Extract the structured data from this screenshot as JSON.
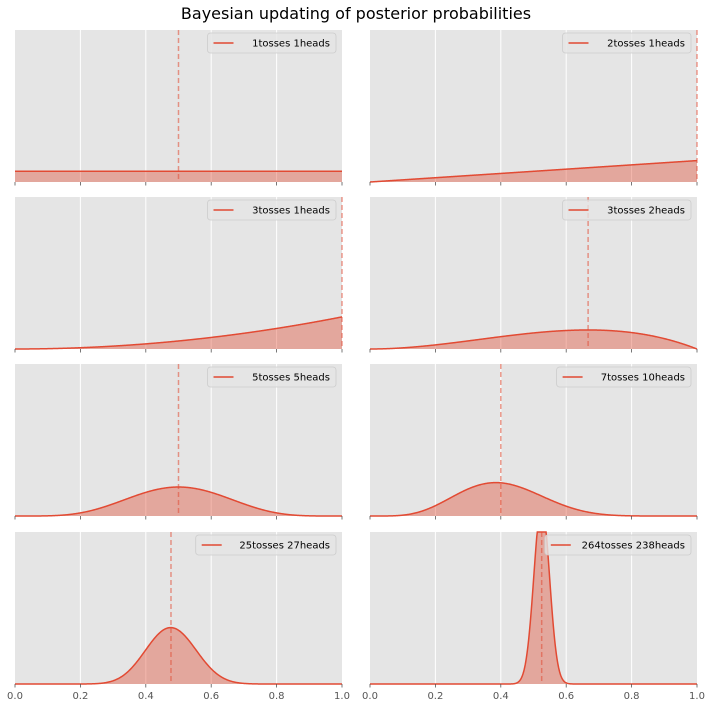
{
  "title": "Bayesian updating of posterior probabilities",
  "colors": {
    "background": "#E5E5E5",
    "grid": "#FFFFFF",
    "line": "#E24A33",
    "fill": "#E24A33"
  },
  "chart_data": [
    {
      "type": "area",
      "legend": "1tosses  1heads",
      "tosses": 1,
      "heads": 1,
      "alpha": 1,
      "beta": 1,
      "mean_line": 0.5,
      "xlim": [
        0,
        1
      ],
      "ylim": [
        0,
        14.2
      ],
      "grid": true,
      "legend_position": "top-right"
    },
    {
      "type": "area",
      "legend": "2tosses  1heads",
      "tosses": 2,
      "heads": 1,
      "alpha": 2,
      "beta": 1,
      "mean_line": 1.0,
      "xlim": [
        0,
        1
      ],
      "ylim": [
        0,
        14.2
      ],
      "grid": true,
      "legend_position": "top-right"
    },
    {
      "type": "area",
      "legend": "3tosses  1heads",
      "tosses": 3,
      "heads": 1,
      "alpha": 3,
      "beta": 1,
      "mean_line": 1.0,
      "xlim": [
        0,
        1
      ],
      "ylim": [
        0,
        14.2
      ],
      "grid": true,
      "legend_position": "top-right"
    },
    {
      "type": "area",
      "legend": "3tosses  2heads",
      "tosses": 3,
      "heads": 2,
      "alpha": 3,
      "beta": 2,
      "mean_line": 0.667,
      "xlim": [
        0,
        1
      ],
      "ylim": [
        0,
        14.2
      ],
      "grid": true,
      "legend_position": "top-right"
    },
    {
      "type": "area",
      "legend": "5tosses  5heads",
      "tosses": 5,
      "heads": 5,
      "alpha": 6,
      "beta": 6,
      "mean_line": 0.5,
      "xlim": [
        0,
        1
      ],
      "ylim": [
        0,
        14.2
      ],
      "grid": true,
      "legend_position": "top-right"
    },
    {
      "type": "area",
      "legend": "7tosses  10heads",
      "tosses": 7,
      "heads": 10,
      "alpha": 6,
      "beta": 9,
      "mean_line": 0.4,
      "xlim": [
        0,
        1
      ],
      "ylim": [
        0,
        14.2
      ],
      "grid": true,
      "legend_position": "top-right"
    },
    {
      "type": "area",
      "legend": "25tosses  27heads",
      "tosses": 25,
      "heads": 27,
      "alpha": 21,
      "beta": 23,
      "mean_line": 0.477,
      "xlim": [
        0,
        1
      ],
      "ylim": [
        0,
        14.2
      ],
      "grid": true,
      "legend_position": "top-right"
    },
    {
      "type": "area",
      "legend": "264tosses 238heads",
      "tosses": 264,
      "heads": 238,
      "alpha": 232,
      "beta": 210,
      "mean_line": 0.525,
      "xlim": [
        0,
        1
      ],
      "ylim": [
        0,
        14.2
      ],
      "grid": true,
      "legend_position": "top-right"
    }
  ],
  "x_tick_labels": [
    "0.0",
    "0.2",
    "0.4",
    "0.6",
    "0.8",
    "1.0"
  ]
}
